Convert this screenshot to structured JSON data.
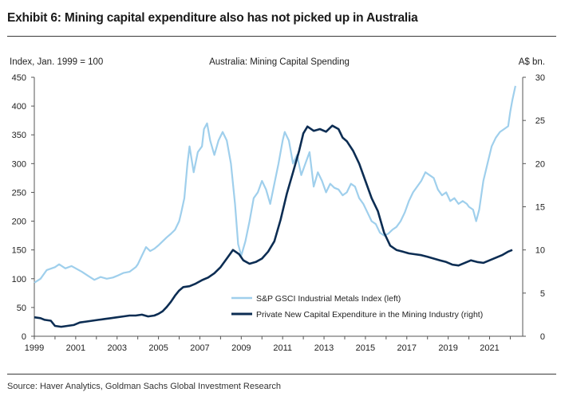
{
  "exhibit": {
    "title": "Exhibit 6: Mining capital expenditure also has not picked up in Australia",
    "source": "Source: Haver Analytics, Goldman Sachs Global Investment Research"
  },
  "chart_data": {
    "type": "line",
    "title": "Australia: Mining Capital Spending",
    "left_axis_label": "Index, Jan. 1999 = 100",
    "right_axis_label": "A$ bn.",
    "left_ylim": [
      0,
      450
    ],
    "left_ticks": [
      0,
      50,
      100,
      150,
      200,
      250,
      300,
      350,
      400,
      450
    ],
    "right_ylim": [
      0,
      30
    ],
    "right_ticks": [
      0,
      5,
      10,
      15,
      20,
      25,
      30
    ],
    "xlim": [
      1999,
      2022.6
    ],
    "x_ticks": [
      1999,
      2001,
      2003,
      2005,
      2007,
      2009,
      2011,
      2013,
      2015,
      2017,
      2019,
      2021
    ],
    "grid": false,
    "legend_position": "bottom-center",
    "colors": {
      "metals": "#9fcfec",
      "capex": "#0c2d53"
    },
    "series": [
      {
        "name": "S&P GSCI Industrial Metals Index (left)",
        "axis": "left",
        "x": [
          1999.0,
          1999.3,
          1999.6,
          2000.0,
          2000.2,
          2000.5,
          2000.8,
          2001.0,
          2001.3,
          2001.6,
          2001.9,
          2002.2,
          2002.5,
          2002.8,
          2003.0,
          2003.3,
          2003.6,
          2003.9,
          2004.0,
          2004.2,
          2004.4,
          2004.6,
          2004.8,
          2005.0,
          2005.2,
          2005.4,
          2005.6,
          2005.8,
          2006.0,
          2006.1,
          2006.25,
          2006.4,
          2006.5,
          2006.7,
          2006.9,
          2007.1,
          2007.2,
          2007.35,
          2007.5,
          2007.7,
          2007.9,
          2008.1,
          2008.3,
          2008.5,
          2008.7,
          2008.85,
          2009.0,
          2009.2,
          2009.4,
          2009.6,
          2009.8,
          2010.0,
          2010.2,
          2010.4,
          2010.6,
          2010.8,
          2011.0,
          2011.1,
          2011.3,
          2011.5,
          2011.7,
          2011.9,
          2012.1,
          2012.3,
          2012.5,
          2012.7,
          2012.9,
          2013.1,
          2013.3,
          2013.5,
          2013.7,
          2013.9,
          2014.1,
          2014.3,
          2014.5,
          2014.7,
          2014.9,
          2015.1,
          2015.3,
          2015.5,
          2015.7,
          2015.9,
          2016.1,
          2016.3,
          2016.5,
          2016.7,
          2016.9,
          2017.1,
          2017.3,
          2017.5,
          2017.7,
          2017.9,
          2018.1,
          2018.3,
          2018.5,
          2018.7,
          2018.9,
          2019.1,
          2019.3,
          2019.5,
          2019.7,
          2019.9,
          2020.0,
          2020.2,
          2020.35,
          2020.5,
          2020.7,
          2020.9,
          2021.1,
          2021.3,
          2021.5,
          2021.7,
          2021.9,
          2022.0,
          2022.1,
          2022.25
        ],
        "values": [
          93,
          100,
          115,
          120,
          125,
          118,
          122,
          118,
          112,
          105,
          98,
          103,
          100,
          102,
          105,
          110,
          112,
          120,
          125,
          140,
          155,
          148,
          152,
          158,
          165,
          172,
          178,
          185,
          200,
          215,
          240,
          300,
          330,
          285,
          320,
          330,
          360,
          370,
          340,
          315,
          340,
          355,
          340,
          300,
          230,
          160,
          140,
          165,
          200,
          240,
          250,
          270,
          255,
          230,
          265,
          300,
          340,
          355,
          340,
          300,
          315,
          280,
          300,
          320,
          260,
          285,
          270,
          250,
          265,
          258,
          255,
          245,
          250,
          265,
          260,
          240,
          230,
          215,
          200,
          195,
          180,
          175,
          178,
          185,
          190,
          200,
          215,
          235,
          250,
          260,
          270,
          285,
          280,
          275,
          255,
          245,
          250,
          235,
          240,
          230,
          235,
          230,
          225,
          220,
          200,
          220,
          270,
          300,
          330,
          345,
          355,
          360,
          365,
          390,
          410,
          435
        ]
      },
      {
        "name": "Private New Capital Expenditure in the Mining Industry (right)",
        "axis": "right",
        "x": [
          1999.0,
          1999.3,
          1999.5,
          1999.8,
          2000.0,
          2000.3,
          2000.6,
          2000.9,
          2001.2,
          2001.5,
          2001.8,
          2002.1,
          2002.4,
          2002.7,
          2003.0,
          2003.3,
          2003.6,
          2003.9,
          2004.2,
          2004.5,
          2004.8,
          2005.0,
          2005.2,
          2005.4,
          2005.6,
          2005.8,
          2006.0,
          2006.2,
          2006.5,
          2006.8,
          2007.1,
          2007.4,
          2007.7,
          2008.0,
          2008.3,
          2008.6,
          2008.9,
          2009.1,
          2009.4,
          2009.7,
          2010.0,
          2010.3,
          2010.6,
          2010.9,
          2011.2,
          2011.5,
          2011.8,
          2012.0,
          2012.2,
          2012.5,
          2012.8,
          2013.1,
          2013.4,
          2013.7,
          2013.9,
          2014.1,
          2014.4,
          2014.7,
          2015.0,
          2015.3,
          2015.6,
          2015.9,
          2016.2,
          2016.5,
          2016.8,
          2017.1,
          2017.4,
          2017.7,
          2018.0,
          2018.3,
          2018.6,
          2018.9,
          2019.2,
          2019.5,
          2019.8,
          2020.1,
          2020.4,
          2020.7,
          2021.0,
          2021.3,
          2021.6,
          2021.9,
          2022.1
        ],
        "values": [
          2.2,
          2.1,
          1.9,
          1.8,
          1.2,
          1.1,
          1.2,
          1.3,
          1.6,
          1.7,
          1.8,
          1.9,
          2.0,
          2.1,
          2.2,
          2.3,
          2.4,
          2.4,
          2.5,
          2.3,
          2.4,
          2.6,
          2.9,
          3.4,
          4.0,
          4.7,
          5.3,
          5.7,
          5.8,
          6.1,
          6.5,
          6.8,
          7.3,
          8.0,
          9.0,
          10.0,
          9.5,
          8.8,
          8.4,
          8.6,
          9.0,
          9.8,
          11.0,
          13.5,
          16.5,
          19.0,
          21.5,
          23.5,
          24.3,
          23.8,
          24.0,
          23.7,
          24.4,
          24.0,
          23.0,
          22.6,
          21.5,
          20.0,
          18.0,
          16.0,
          14.5,
          12.0,
          10.5,
          10.0,
          9.8,
          9.6,
          9.5,
          9.4,
          9.2,
          9.0,
          8.8,
          8.6,
          8.3,
          8.2,
          8.5,
          8.8,
          8.6,
          8.5,
          8.8,
          9.1,
          9.4,
          9.8,
          10.0
        ]
      }
    ]
  }
}
